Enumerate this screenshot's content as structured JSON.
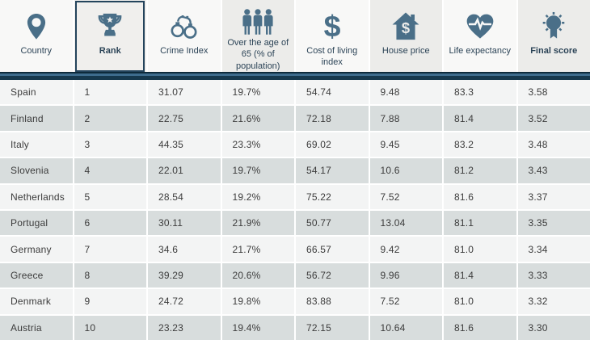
{
  "table": {
    "columns": [
      {
        "key": "country",
        "label": "Country",
        "icon": "location-pin-icon",
        "bold": false,
        "highlighted": false
      },
      {
        "key": "rank",
        "label": "Rank",
        "icon": "trophy-icon",
        "bold": true,
        "highlighted": true
      },
      {
        "key": "crime-index",
        "label": "Crime Index",
        "icon": "handcuffs-icon",
        "bold": false,
        "highlighted": false
      },
      {
        "key": "over-65",
        "label": "Over the age of 65 (% of population)",
        "icon": "people-icon",
        "bold": false,
        "highlighted": false
      },
      {
        "key": "cost-of-living",
        "label": "Cost of living index",
        "icon": "dollar-icon",
        "bold": false,
        "highlighted": false
      },
      {
        "key": "house-price",
        "label": "House price",
        "icon": "house-dollar-icon",
        "bold": false,
        "highlighted": false
      },
      {
        "key": "life-expectancy",
        "label": "Life expectancy",
        "icon": "heart-pulse-icon",
        "bold": false,
        "highlighted": false
      },
      {
        "key": "final-score",
        "label": "Final score",
        "icon": "medal-icon",
        "bold": true,
        "highlighted": false
      }
    ],
    "rows": [
      [
        "Spain",
        "1",
        "31.07",
        "19.7%",
        "54.74",
        "9.48",
        "83.3",
        "3.58"
      ],
      [
        "Finland",
        "2",
        "22.75",
        "21.6%",
        "72.18",
        "7.88",
        "81.4",
        "3.52"
      ],
      [
        "Italy",
        "3",
        "44.35",
        "23.3%",
        "69.02",
        "9.45",
        "83.2",
        "3.48"
      ],
      [
        "Slovenia",
        "4",
        "22.01",
        "19.7%",
        "54.17",
        "10.6",
        "81.2",
        "3.43"
      ],
      [
        "Netherlands",
        "5",
        "28.54",
        "19.2%",
        "75.22",
        "7.52",
        "81.6",
        "3.37"
      ],
      [
        "Portugal",
        "6",
        "30.11",
        "21.9%",
        "50.77",
        "13.04",
        "81.1",
        "3.35"
      ],
      [
        "Germany",
        "7",
        "34.6",
        "21.7%",
        "66.57",
        "9.42",
        "81.0",
        "3.34"
      ],
      [
        "Greece",
        "8",
        "39.29",
        "20.6%",
        "56.72",
        "9.96",
        "81.4",
        "3.33"
      ],
      [
        "Denmark",
        "9",
        "24.72",
        "19.8%",
        "83.88",
        "7.52",
        "81.0",
        "3.32"
      ],
      [
        "Austria",
        "10",
        "23.23",
        "19.4%",
        "72.15",
        "10.64",
        "81.6",
        "3.30"
      ]
    ]
  },
  "colors": {
    "icon": "#4a6f88",
    "header_text": "#2c4457",
    "highlight_border": "#24445c",
    "separator_bar_dark": "#16384d",
    "separator_bar_light": "#3e6c8d",
    "row_light": "#f3f4f4",
    "row_dark": "#d8dddd",
    "header_col_light": "#f8f8f7",
    "header_col_dark": "#ececea",
    "cell_text": "#3c3c3c"
  }
}
